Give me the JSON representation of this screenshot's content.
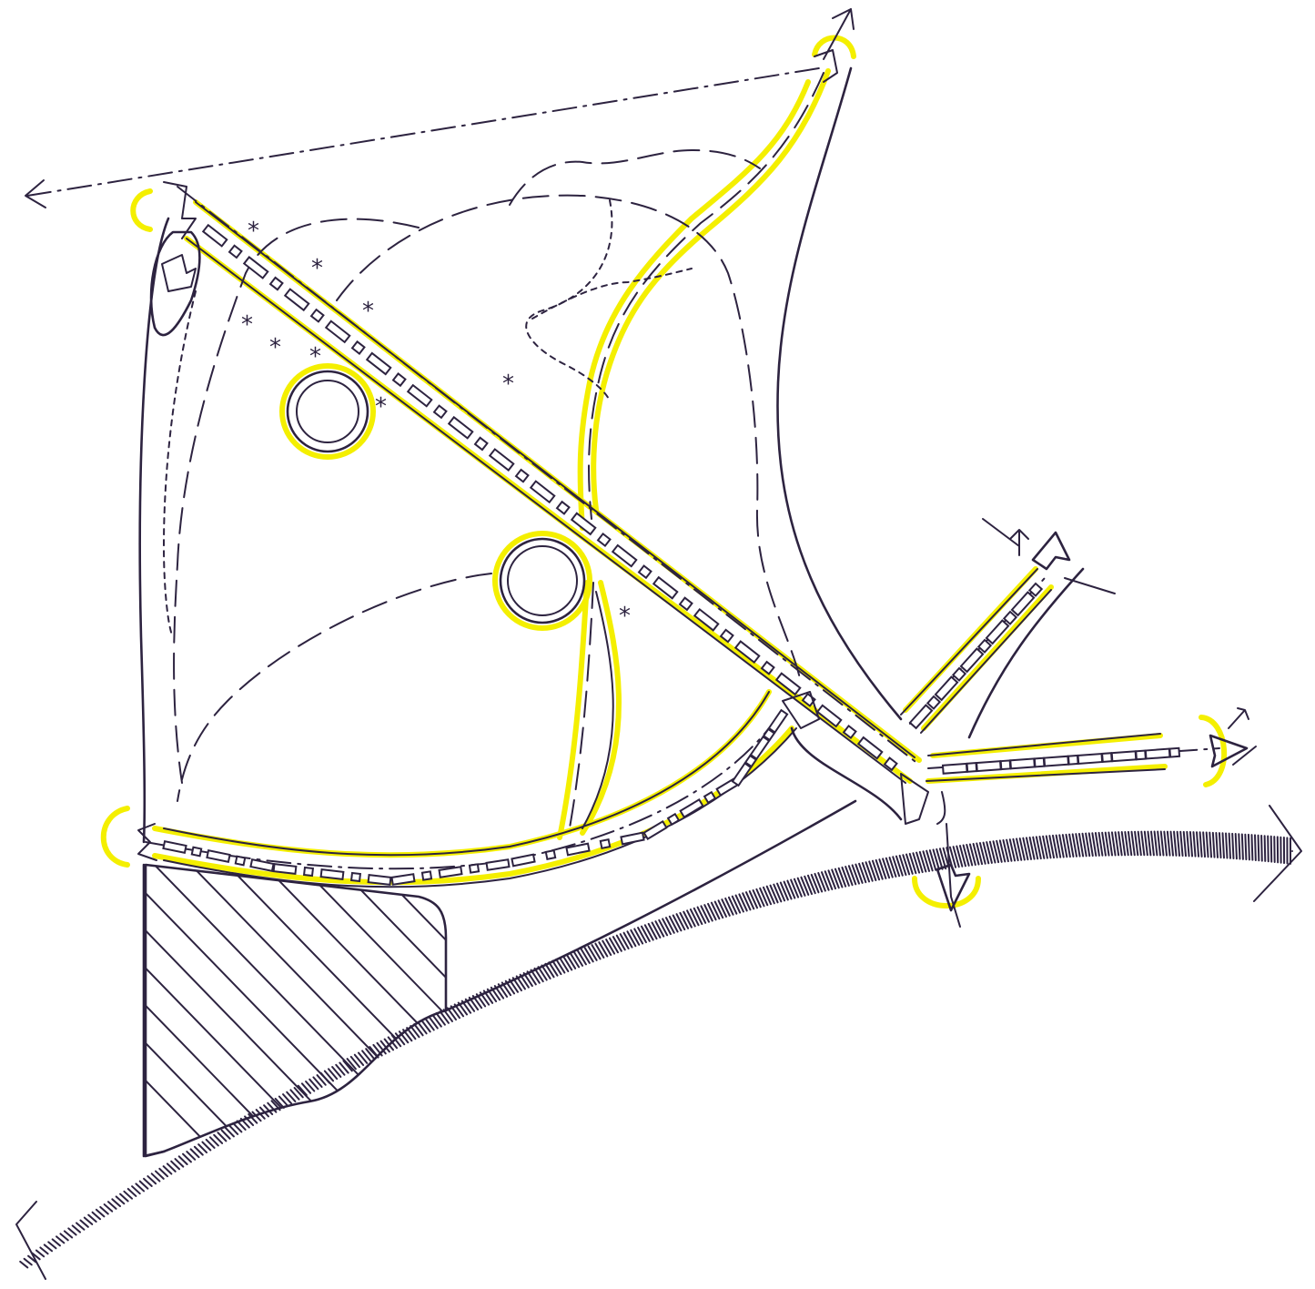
{
  "diagram": {
    "colors": {
      "ink": "#2d2340",
      "highlight": "#f4ef00",
      "paper": "#ffffff"
    },
    "legend": {},
    "elements": [
      "site-boundary",
      "main-diagonal-avenue",
      "curved-avenue-north",
      "southern-curved-avenue",
      "north-east-branch-road",
      "east-branch-road",
      "round-plaza-north",
      "round-plaza-central",
      "hatched-block",
      "railway-embankment",
      "access-arrow"
    ]
  }
}
